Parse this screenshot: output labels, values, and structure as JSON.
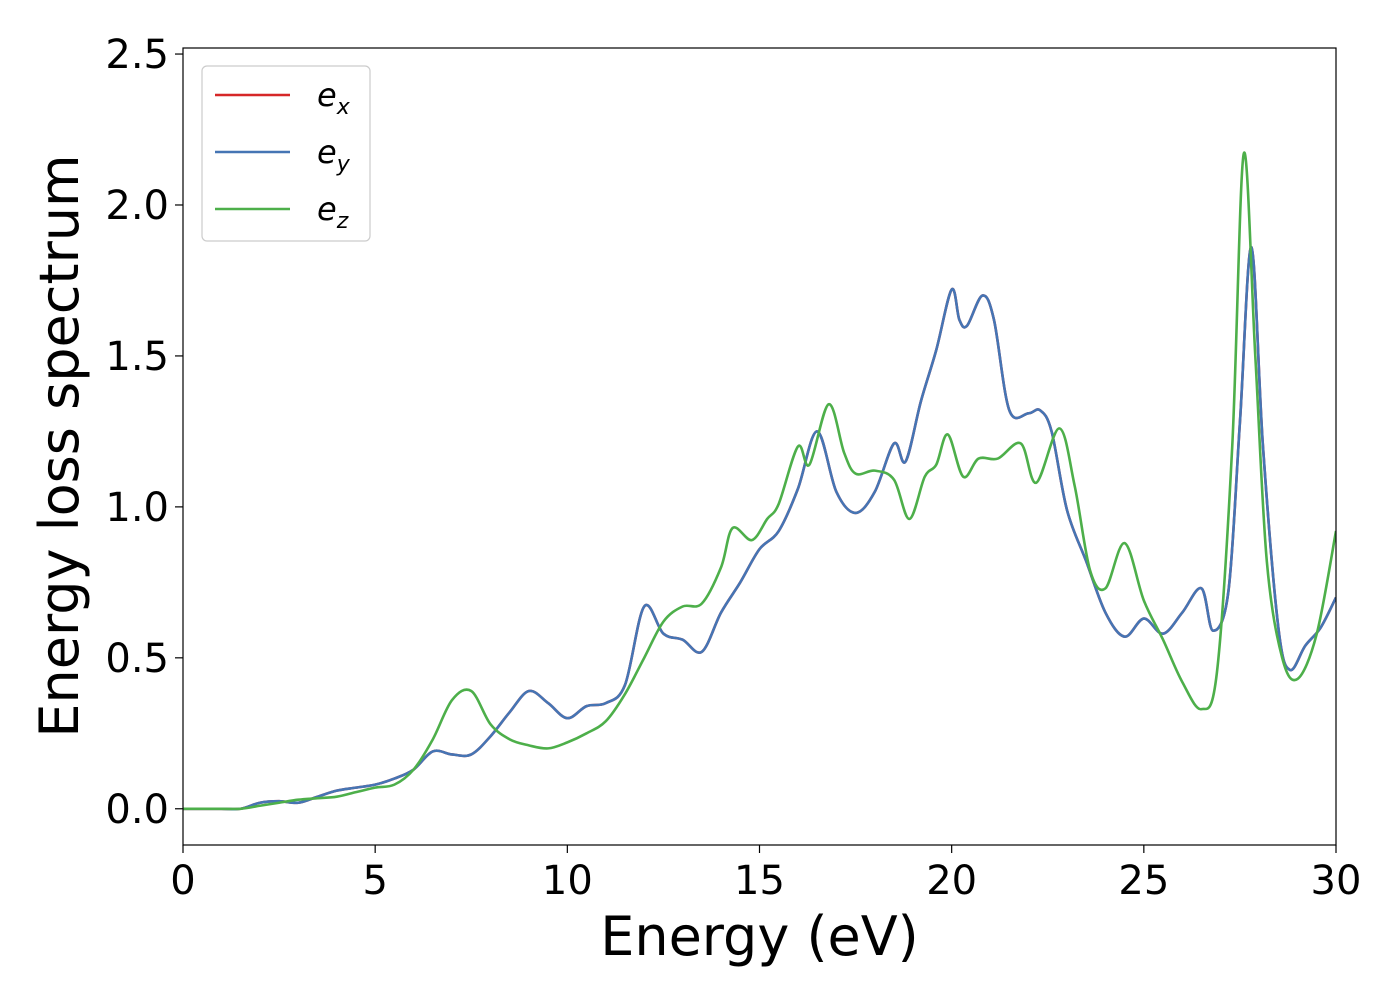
{
  "chart_data": {
    "type": "line",
    "title": "",
    "xlabel": "Energy (eV)",
    "ylabel": "Energy loss spectrum",
    "xlim": [
      0,
      30
    ],
    "ylim": [
      -0.12,
      2.52
    ],
    "xticks": [
      0,
      5,
      10,
      15,
      20,
      25,
      30
    ],
    "xtick_labels": [
      "0",
      "5",
      "10",
      "15",
      "20",
      "25",
      "30"
    ],
    "yticks": [
      0.0,
      0.5,
      1.0,
      1.5,
      2.0,
      2.5
    ],
    "ytick_labels": [
      "0.0",
      "0.5",
      "1.0",
      "1.5",
      "2.0",
      "2.5"
    ],
    "grid": false,
    "legend_position": "top-left",
    "series": [
      {
        "name": "e",
        "subscript": "x",
        "color": "#d62728",
        "x": [
          0,
          1,
          1.5,
          2,
          2.5,
          3,
          3.5,
          4,
          4.5,
          5,
          5.5,
          6,
          6.5,
          7,
          7.5,
          8,
          8.5,
          9,
          9.5,
          10,
          10.5,
          11,
          11.5,
          12,
          12.5,
          13,
          13.5,
          14,
          14.5,
          15,
          15.5,
          16,
          16.5,
          17,
          17.5,
          18,
          18.5,
          18.8,
          19.2,
          19.6,
          20.0,
          20.2,
          20.4,
          20.8,
          21.1,
          21.5,
          22,
          22.3,
          22.6,
          23,
          23.5,
          24,
          24.5,
          25,
          25.5,
          26,
          26.5,
          26.8,
          27.2,
          27.5,
          27.8,
          28.1,
          28.5,
          28.8,
          29.2,
          29.6,
          30
        ],
        "y": [
          0.0,
          0.0,
          0.0,
          0.02,
          0.025,
          0.02,
          0.04,
          0.06,
          0.07,
          0.08,
          0.1,
          0.13,
          0.19,
          0.18,
          0.18,
          0.24,
          0.32,
          0.39,
          0.35,
          0.3,
          0.34,
          0.35,
          0.41,
          0.67,
          0.58,
          0.56,
          0.52,
          0.65,
          0.75,
          0.86,
          0.92,
          1.06,
          1.25,
          1.05,
          0.98,
          1.05,
          1.21,
          1.15,
          1.35,
          1.52,
          1.72,
          1.62,
          1.6,
          1.7,
          1.62,
          1.32,
          1.31,
          1.32,
          1.25,
          0.99,
          0.82,
          0.65,
          0.57,
          0.63,
          0.58,
          0.65,
          0.73,
          0.59,
          0.72,
          1.28,
          1.86,
          1.2,
          0.6,
          0.46,
          0.54,
          0.6,
          0.7
        ]
      },
      {
        "name": "e",
        "subscript": "y",
        "color": "#4575b4",
        "x": [
          0,
          1,
          1.5,
          2,
          2.5,
          3,
          3.5,
          4,
          4.5,
          5,
          5.5,
          6,
          6.5,
          7,
          7.5,
          8,
          8.5,
          9,
          9.5,
          10,
          10.5,
          11,
          11.5,
          12,
          12.5,
          13,
          13.5,
          14,
          14.5,
          15,
          15.5,
          16,
          16.5,
          17,
          17.5,
          18,
          18.5,
          18.8,
          19.2,
          19.6,
          20.0,
          20.2,
          20.4,
          20.8,
          21.1,
          21.5,
          22,
          22.3,
          22.6,
          23,
          23.5,
          24,
          24.5,
          25,
          25.5,
          26,
          26.5,
          26.8,
          27.2,
          27.5,
          27.8,
          28.1,
          28.5,
          28.8,
          29.2,
          29.6,
          30
        ],
        "y": [
          0.0,
          0.0,
          0.0,
          0.02,
          0.025,
          0.02,
          0.04,
          0.06,
          0.07,
          0.08,
          0.1,
          0.13,
          0.19,
          0.18,
          0.18,
          0.24,
          0.32,
          0.39,
          0.35,
          0.3,
          0.34,
          0.35,
          0.41,
          0.67,
          0.58,
          0.56,
          0.52,
          0.65,
          0.75,
          0.86,
          0.92,
          1.06,
          1.25,
          1.05,
          0.98,
          1.05,
          1.21,
          1.15,
          1.35,
          1.52,
          1.72,
          1.62,
          1.6,
          1.7,
          1.62,
          1.32,
          1.31,
          1.32,
          1.25,
          0.99,
          0.82,
          0.65,
          0.57,
          0.63,
          0.58,
          0.65,
          0.73,
          0.59,
          0.72,
          1.28,
          1.86,
          1.2,
          0.6,
          0.46,
          0.54,
          0.6,
          0.7
        ]
      },
      {
        "name": "e",
        "subscript": "z",
        "color": "#4daf4a",
        "x": [
          0,
          1,
          1.5,
          2,
          2.5,
          3,
          3.5,
          4,
          4.5,
          5,
          5.5,
          6,
          6.5,
          7,
          7.5,
          8,
          8.5,
          9,
          9.5,
          10,
          10.5,
          11,
          11.5,
          12,
          12.5,
          13,
          13.5,
          14,
          14.3,
          14.8,
          15.2,
          15.5,
          16,
          16.3,
          16.8,
          17.2,
          17.5,
          18,
          18.5,
          18.9,
          19.3,
          19.6,
          19.9,
          20.3,
          20.7,
          21.2,
          21.8,
          22.2,
          22.8,
          23.2,
          23.6,
          24,
          24.5,
          25,
          25.5,
          26,
          26.5,
          26.9,
          27.3,
          27.6,
          27.9,
          28.2,
          28.6,
          29,
          29.5,
          30
        ],
        "y": [
          0.0,
          0.0,
          0.0,
          0.01,
          0.02,
          0.03,
          0.035,
          0.04,
          0.055,
          0.07,
          0.08,
          0.13,
          0.23,
          0.36,
          0.39,
          0.28,
          0.23,
          0.21,
          0.2,
          0.22,
          0.25,
          0.29,
          0.38,
          0.5,
          0.62,
          0.67,
          0.68,
          0.8,
          0.93,
          0.89,
          0.96,
          1.01,
          1.2,
          1.14,
          1.34,
          1.18,
          1.11,
          1.12,
          1.09,
          0.96,
          1.1,
          1.14,
          1.24,
          1.1,
          1.16,
          1.16,
          1.21,
          1.08,
          1.26,
          1.07,
          0.79,
          0.73,
          0.88,
          0.69,
          0.56,
          0.42,
          0.33,
          0.45,
          1.2,
          2.17,
          1.5,
          0.82,
          0.5,
          0.43,
          0.58,
          0.92
        ]
      }
    ]
  }
}
